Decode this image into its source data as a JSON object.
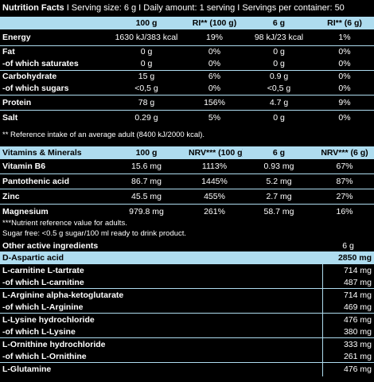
{
  "header": {
    "title": "Nutrition Facts",
    "serving_info": "I Serving size: 6 g I Daily amount: 1 serving I Servings per container: 50"
  },
  "nutrition": {
    "columns": [
      "",
      "100 g",
      "RI** (100 g)",
      "6 g",
      "RI** (6 g)"
    ],
    "rows": [
      {
        "label": "Energy",
        "v100": "1630 kJ/383 kcal",
        "ri100": "19%",
        "v6": "98 kJ/23 kcal",
        "ri6": "1%"
      },
      {
        "label": "Fat",
        "v100": "0 g",
        "ri100": "0%",
        "v6": "0 g",
        "ri6": "0%",
        "sub_label": "-of which saturates",
        "sub_v100": "0 g",
        "sub_ri100": "0%",
        "sub_v6": "0 g",
        "sub_ri6": "0%"
      },
      {
        "label": "Carbohydrate",
        "v100": "15 g",
        "ri100": "6%",
        "v6": "0.9 g",
        "ri6": "0%",
        "sub_label": "-of which sugars",
        "sub_v100": "<0,5 g",
        "sub_ri100": "0%",
        "sub_v6": "<0,5 g",
        "sub_ri6": "0%"
      },
      {
        "label": "Protein",
        "v100": "78 g",
        "ri100": "156%",
        "v6": "4.7 g",
        "ri6": "9%"
      },
      {
        "label": "Salt",
        "v100": "0.29 g",
        "ri100": "5%",
        "v6": "0 g",
        "ri6": "0%"
      }
    ],
    "footnote": "** Reference intake of an average adult (8400 kJ/2000 kcal)."
  },
  "vitamins": {
    "columns": [
      "Vitamins & Minerals",
      "100 g",
      "NRV*** (100 g)",
      "6 g",
      "NRV*** (6 g)"
    ],
    "rows": [
      {
        "label": "Vitamin B6",
        "v100": "15.6 mg",
        "nrv100": "1113%",
        "v6": "0.93 mg",
        "nrv6": "67%"
      },
      {
        "label": "Pantothenic acid",
        "v100": "86.7 mg",
        "nrv100": "1445%",
        "v6": "5.2 mg",
        "nrv6": "87%"
      },
      {
        "label": "Zinc",
        "v100": "45.5 mg",
        "nrv100": "455%",
        "v6": "2.7 mg",
        "nrv6": "27%"
      },
      {
        "label": "Magnesium",
        "v100": "979.8 mg",
        "nrv100": "261%",
        "v6": "58.7 mg",
        "nrv6": "16%"
      }
    ],
    "footnote1": "***Nutrient reference value for adults.",
    "footnote2": "Sugar free: <0.5 g sugar/100 ml ready to drink product."
  },
  "other": {
    "title": "Other active ingredients",
    "column": "6 g",
    "rows": [
      {
        "label": "D-Aspartic acid",
        "value": "2850 mg"
      },
      {
        "label": "L-carnitine L-tartrate",
        "value": "714 mg",
        "sub_label": "-of which L-carnitine",
        "sub_value": "487 mg"
      },
      {
        "label": "L-Arginine alpha-ketoglutarate",
        "value": "714 mg",
        "sub_label": "-of which L-Arginine",
        "sub_value": "469 mg"
      },
      {
        "label": "L-Lysine hydrochloride",
        "value": "476 mg",
        "sub_label": "-of which L-Lysine",
        "sub_value": "380 mg"
      },
      {
        "label": "L-Ornithine hydrochloride",
        "value": "333 mg",
        "sub_label": "-of which L-Ornithine",
        "sub_value": "261 mg"
      },
      {
        "label": "L-Glutamine",
        "value": "476 mg"
      }
    ]
  }
}
